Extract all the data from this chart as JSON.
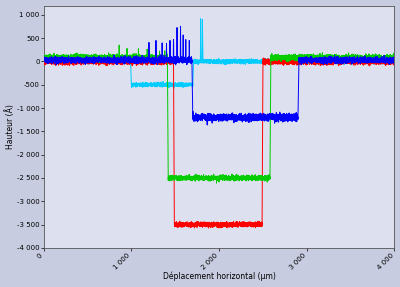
{
  "xlabel": "Déplacement horizontal (µm)",
  "ylabel": "Hauteur (Å)",
  "xlim": [
    0,
    4000
  ],
  "ylim": [
    -4000,
    1200
  ],
  "yticks": [
    1000,
    500,
    0,
    -500,
    -1000,
    -1500,
    -2000,
    -2500,
    -3000,
    -3500,
    -4000
  ],
  "xtick_vals": [
    0,
    1000,
    2000,
    3000,
    4000
  ],
  "xtick_labels": [
    "0",
    "1 000",
    "2 000",
    "3 000",
    "4 000"
  ],
  "ytick_labels": [
    "1 000",
    "500",
    "0",
    "-500",
    "-1 000",
    "-1 500",
    "-2 000",
    "-2 500",
    "-3 000",
    "-3 500",
    "-4 000"
  ],
  "colors": {
    "red": "#ff0000",
    "green": "#00cc00",
    "blue": "#0000ff",
    "cyan": "#00ccff"
  },
  "background": "#c8cce0",
  "plot_bg": "#dde0ee",
  "linewidth": 0.7
}
